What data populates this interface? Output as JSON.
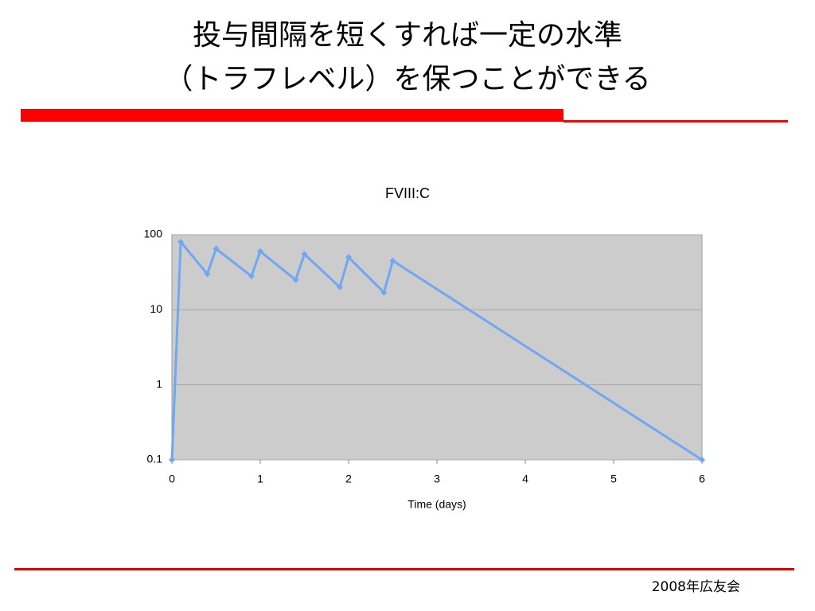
{
  "header": {
    "title_lines": [
      "投与間隔を短くすれば一定の水準",
      "（トラフレベル）を保つことができる"
    ]
  },
  "footer": "2008年広友会",
  "chart_data": {
    "type": "line",
    "title": "FVIII:C",
    "xlabel": "Time (days)",
    "x": [
      0,
      0.1,
      0.4,
      0.5,
      0.9,
      1.0,
      1.4,
      1.5,
      1.9,
      2.0,
      2.4,
      2.5,
      6
    ],
    "series": [
      {
        "name": "FVIII:C",
        "color": "#70a7f2",
        "values": [
          0.1,
          80,
          30,
          65,
          28,
          60,
          25,
          55,
          20,
          50,
          17,
          45,
          0.1
        ]
      }
    ],
    "xlim": [
      0,
      6
    ],
    "xticks": [
      0,
      1,
      2,
      3,
      4,
      5,
      6
    ],
    "ylim": [
      0.1,
      100
    ],
    "yticks": [
      0.1,
      1,
      10,
      100
    ],
    "yscale": "log",
    "grid": true
  }
}
